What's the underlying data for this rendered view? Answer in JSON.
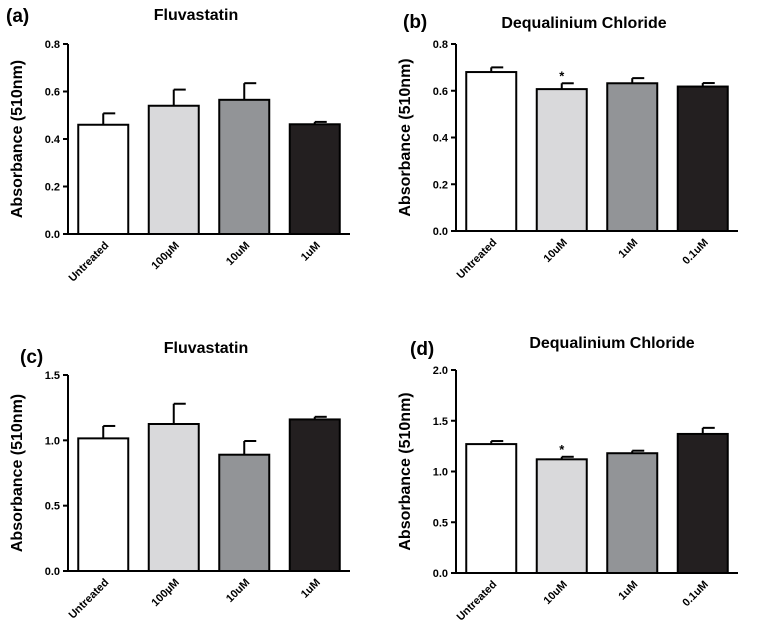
{
  "chart_data": [
    {
      "type": "bar",
      "panel_label": "(a)",
      "title": "Fluvastatin",
      "ylabel": "Absorbance (510nm)",
      "ylim": [
        0,
        0.8
      ],
      "yticks": [
        "0.0",
        "0.2",
        "0.4",
        "0.6",
        "0.8"
      ],
      "categories": [
        "Untreated",
        "100µM",
        "10uM",
        "1uM"
      ],
      "values": [
        0.46,
        0.54,
        0.565,
        0.462
      ],
      "errors": [
        0.048,
        0.068,
        0.07,
        0.01
      ],
      "colors": [
        "#ffffff",
        "#d9d9db",
        "#929497",
        "#231f20"
      ],
      "annotations": [
        "",
        "",
        "",
        ""
      ]
    },
    {
      "type": "bar",
      "panel_label": "(b)",
      "title": "Dequalinium Chloride",
      "ylabel": "Absorbance (510nm)",
      "ylim": [
        0,
        0.8
      ],
      "yticks": [
        "0.0",
        "0.2",
        "0.4",
        "0.6",
        "0.8"
      ],
      "categories": [
        "Untreated",
        "10uM",
        "1uM",
        "0.1uM"
      ],
      "values": [
        0.68,
        0.607,
        0.632,
        0.618
      ],
      "errors": [
        0.02,
        0.025,
        0.022,
        0.015
      ],
      "colors": [
        "#ffffff",
        "#d9d9db",
        "#929497",
        "#231f20"
      ],
      "annotations": [
        "",
        "*",
        "",
        ""
      ]
    },
    {
      "type": "bar",
      "panel_label": "(c)",
      "title": "Fluvastatin",
      "ylabel": "Absorbance (510nm)",
      "ylim": [
        0,
        1.5
      ],
      "yticks": [
        "0.0",
        "0.5",
        "1.0",
        "1.5"
      ],
      "categories": [
        "Untreated",
        "100µM",
        "10uM",
        "1uM"
      ],
      "values": [
        1.015,
        1.125,
        0.89,
        1.16
      ],
      "errors": [
        0.095,
        0.155,
        0.105,
        0.02
      ],
      "colors": [
        "#ffffff",
        "#d9d9db",
        "#929497",
        "#231f20"
      ],
      "annotations": [
        "",
        "",
        "",
        ""
      ]
    },
    {
      "type": "bar",
      "panel_label": "(d)",
      "title": "Dequalinium Chloride",
      "ylabel": "Absorbance (510nm)",
      "ylim": [
        0,
        2.0
      ],
      "yticks": [
        "0.0",
        "0.5",
        "1.0",
        "1.5",
        "2.0"
      ],
      "categories": [
        "Untreated",
        "10uM",
        "1uM",
        "0.1uM"
      ],
      "values": [
        1.27,
        1.12,
        1.18,
        1.37
      ],
      "errors": [
        0.03,
        0.025,
        0.025,
        0.06
      ],
      "colors": [
        "#ffffff",
        "#d9d9db",
        "#929497",
        "#231f20"
      ],
      "annotations": [
        "",
        "*",
        "",
        ""
      ]
    }
  ]
}
